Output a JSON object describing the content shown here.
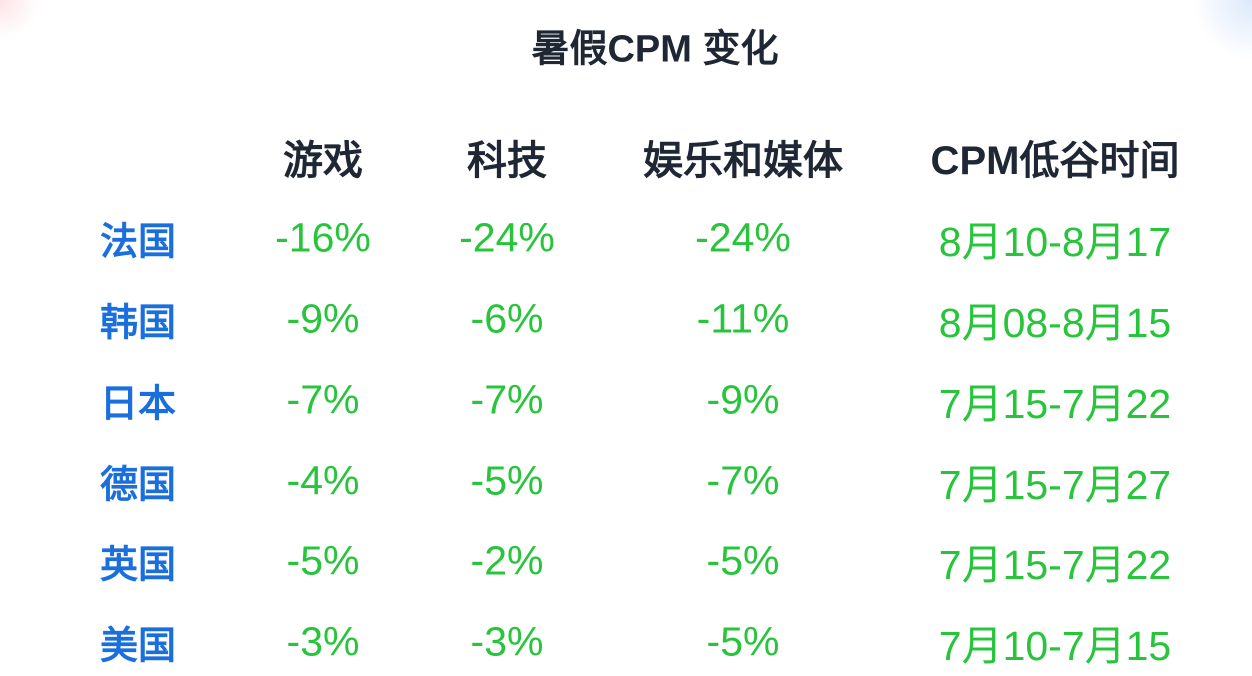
{
  "title": "暑假CPM 变化",
  "table": {
    "columns": [
      "游戏",
      "科技",
      "娱乐和媒体",
      "CPM低谷时间"
    ],
    "rows": [
      {
        "label": "法国",
        "cells": [
          "-16%",
          "-24%",
          "-24%",
          "8月10-8月17"
        ]
      },
      {
        "label": "韩国",
        "cells": [
          "-9%",
          "-6%",
          "-11%",
          "8月08-8月15"
        ]
      },
      {
        "label": "日本",
        "cells": [
          "-7%",
          "-7%",
          "-9%",
          "7月15-7月22"
        ]
      },
      {
        "label": "德国",
        "cells": [
          "-4%",
          "-5%",
          "-7%",
          "7月15-7月27"
        ]
      },
      {
        "label": "英国",
        "cells": [
          "-5%",
          "-2%",
          "-5%",
          "7月15-7月22"
        ]
      },
      {
        "label": "美国",
        "cells": [
          "-3%",
          "-3%",
          "-5%",
          "7月10-7月15"
        ]
      }
    ]
  }
}
